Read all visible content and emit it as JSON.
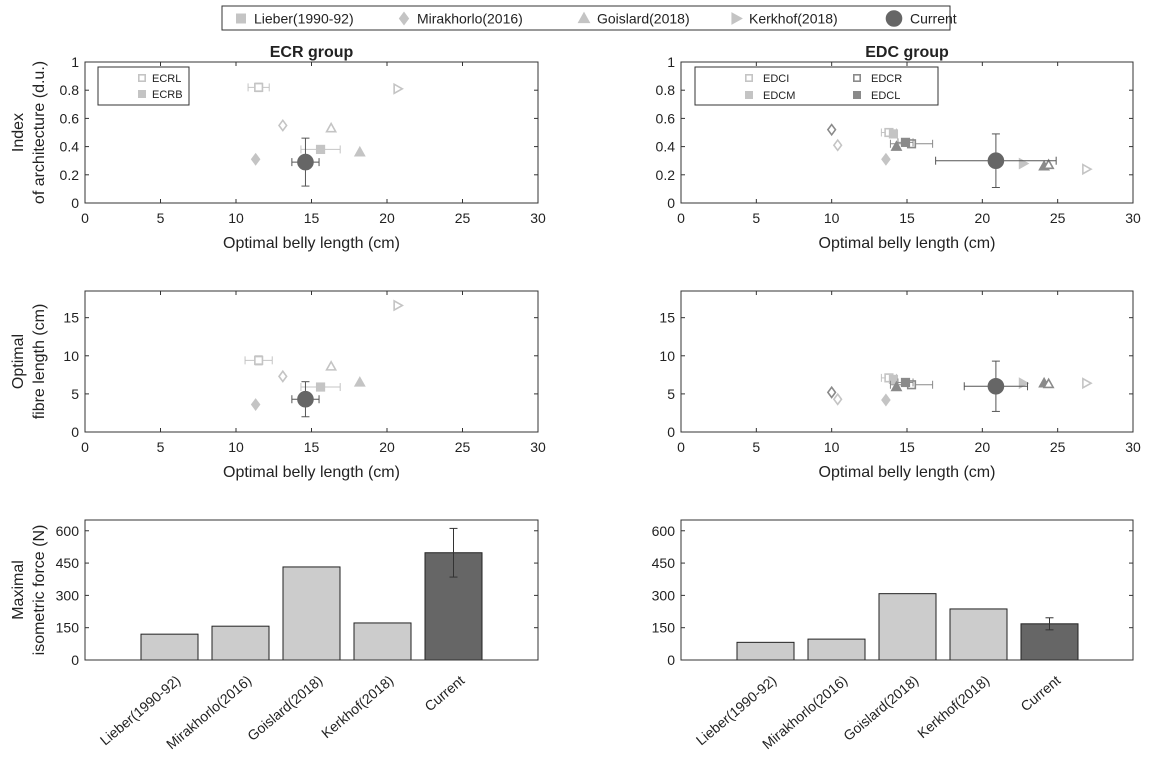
{
  "legend": {
    "placement": "top-center",
    "entries": [
      {
        "label": "Lieber(1990-92)",
        "marker": "square-filled",
        "color": "#c4c4c4"
      },
      {
        "label": "Mirakhorlo(2016)",
        "marker": "diamond-filled",
        "color": "#c4c4c4"
      },
      {
        "label": "Goislard(2018)",
        "marker": "triangle-up-filled",
        "color": "#c4c4c4"
      },
      {
        "label": "Kerkhof(2018)",
        "marker": "triangle-right-filled",
        "color": "#c4c4c4"
      },
      {
        "label": "Current",
        "marker": "circle-filled",
        "color": "#666666"
      }
    ]
  },
  "chart_data": [
    {
      "id": "ecr-ia",
      "type": "scatter",
      "title": "ECR group",
      "xlabel": "Optimal belly length (cm)",
      "ylabel": [
        "Index",
        "of architecture (d.u.)"
      ],
      "xlim": [
        0,
        30
      ],
      "ylim": [
        0,
        1
      ],
      "xticks": [
        0,
        5,
        10,
        15,
        20,
        25,
        30
      ],
      "yticks": [
        0,
        0.2,
        0.4,
        0.6,
        0.8,
        1
      ],
      "inset_legend": [
        {
          "label": "ECRL",
          "marker": "square-open",
          "color": "#c4c4c4"
        },
        {
          "label": "ECRB",
          "marker": "square-filled",
          "color": "#c4c4c4"
        }
      ],
      "points": [
        {
          "study": "Lieber(1990-92)",
          "muscle": "ECRL",
          "x": 11.5,
          "y": 0.82,
          "xerr": 0.7,
          "yerr": 0.03,
          "marker": "square",
          "fill": false,
          "color": "#c4c4c4"
        },
        {
          "study": "Lieber(1990-92)",
          "muscle": "ECRB",
          "x": 15.6,
          "y": 0.38,
          "xerr": 1.3,
          "yerr": 0.02,
          "marker": "square",
          "fill": true,
          "color": "#c4c4c4"
        },
        {
          "study": "Mirakhorlo(2016)",
          "muscle": "ECRL",
          "x": 13.1,
          "y": 0.55,
          "marker": "diamond",
          "fill": false,
          "color": "#c4c4c4"
        },
        {
          "study": "Mirakhorlo(2016)",
          "muscle": "ECRB",
          "x": 11.3,
          "y": 0.31,
          "marker": "diamond",
          "fill": true,
          "color": "#c4c4c4"
        },
        {
          "study": "Goislard(2018)",
          "muscle": "ECRL",
          "x": 16.3,
          "y": 0.53,
          "marker": "triangle-up",
          "fill": false,
          "color": "#c4c4c4"
        },
        {
          "study": "Goislard(2018)",
          "muscle": "ECRB",
          "x": 18.2,
          "y": 0.36,
          "marker": "triangle-up",
          "fill": true,
          "color": "#c4c4c4"
        },
        {
          "study": "Kerkhof(2018)",
          "muscle": "ECRL",
          "x": 20.7,
          "y": 0.81,
          "marker": "triangle-right",
          "fill": false,
          "color": "#c4c4c4"
        },
        {
          "study": "Current",
          "muscle": "ECR",
          "x": 14.6,
          "y": 0.29,
          "xerr": 0.9,
          "yerr": 0.17,
          "marker": "circle",
          "fill": true,
          "color": "#666666"
        }
      ]
    },
    {
      "id": "edc-ia",
      "type": "scatter",
      "title": "EDC group",
      "xlabel": "Optimal belly length (cm)",
      "ylabel": [],
      "xlim": [
        0,
        30
      ],
      "ylim": [
        0,
        1
      ],
      "xticks": [
        0,
        5,
        10,
        15,
        20,
        25,
        30
      ],
      "yticks": [
        0,
        0.2,
        0.4,
        0.6,
        0.8,
        1
      ],
      "inset_legend": [
        {
          "label": "EDCI",
          "marker": "square-open",
          "color": "#c4c4c4"
        },
        {
          "label": "EDCR",
          "marker": "square-open",
          "color": "#8a8a8a"
        },
        {
          "label": "EDCM",
          "marker": "square-filled",
          "color": "#c4c4c4"
        },
        {
          "label": "EDCL",
          "marker": "square-filled",
          "color": "#8a8a8a"
        }
      ],
      "points": [
        {
          "study": "Lieber(1990-92)",
          "x": 13.8,
          "y": 0.5,
          "xerr": 0.5,
          "marker": "square",
          "fill": false,
          "color": "#c4c4c4"
        },
        {
          "study": "Lieber(1990-92)",
          "x": 14.1,
          "y": 0.49,
          "marker": "square",
          "fill": true,
          "color": "#c4c4c4"
        },
        {
          "study": "Lieber(1990-92)",
          "x": 15.3,
          "y": 0.42,
          "xerr": 1.4,
          "marker": "square",
          "fill": false,
          "color": "#8a8a8a"
        },
        {
          "study": "Lieber(1990-92)",
          "x": 14.9,
          "y": 0.43,
          "xerr": 0.5,
          "marker": "square",
          "fill": true,
          "color": "#8a8a8a"
        },
        {
          "study": "Mirakhorlo(2016)",
          "x": 10.0,
          "y": 0.52,
          "marker": "diamond",
          "fill": false,
          "color": "#8a8a8a"
        },
        {
          "study": "Mirakhorlo(2016)",
          "x": 10.4,
          "y": 0.41,
          "marker": "diamond",
          "fill": false,
          "color": "#c4c4c4"
        },
        {
          "study": "Mirakhorlo(2016)",
          "x": 13.6,
          "y": 0.31,
          "marker": "diamond",
          "fill": true,
          "color": "#c4c4c4"
        },
        {
          "study": "Goislard(2018)",
          "x": 14.3,
          "y": 0.4,
          "marker": "triangle-up",
          "fill": true,
          "color": "#8a8a8a"
        },
        {
          "study": "Goislard(2018)",
          "x": 24.1,
          "y": 0.26,
          "marker": "triangle-up",
          "fill": true,
          "color": "#8a8a8a"
        },
        {
          "study": "Goislard(2018)",
          "x": 24.4,
          "y": 0.27,
          "marker": "triangle-up",
          "fill": false,
          "color": "#8a8a8a"
        },
        {
          "study": "Kerkhof(2018)",
          "x": 22.7,
          "y": 0.28,
          "marker": "triangle-right",
          "fill": true,
          "color": "#c4c4c4"
        },
        {
          "study": "Kerkhof(2018)",
          "x": 26.9,
          "y": 0.24,
          "marker": "triangle-right",
          "fill": false,
          "color": "#c4c4c4"
        },
        {
          "study": "Current",
          "x": 20.9,
          "y": 0.3,
          "xerr": 4.0,
          "yerr": 0.19,
          "marker": "circle",
          "fill": true,
          "color": "#666666"
        }
      ]
    },
    {
      "id": "ecr-fibre",
      "type": "scatter",
      "title": "",
      "xlabel": "Optimal belly length (cm)",
      "ylabel": [
        "Optimal",
        "fibre length (cm)"
      ],
      "xlim": [
        0,
        30
      ],
      "ylim": [
        0,
        18.5
      ],
      "xticks": [
        0,
        5,
        10,
        15,
        20,
        25,
        30
      ],
      "yticks": [
        0,
        5,
        10,
        15
      ],
      "points": [
        {
          "study": "Lieber(1990-92)",
          "x": 11.5,
          "y": 9.4,
          "xerr": 0.9,
          "yerr": 0.6,
          "marker": "square",
          "fill": false,
          "color": "#c4c4c4"
        },
        {
          "study": "Lieber(1990-92)",
          "x": 15.6,
          "y": 5.9,
          "xerr": 1.3,
          "marker": "square",
          "fill": true,
          "color": "#c4c4c4"
        },
        {
          "study": "Mirakhorlo(2016)",
          "x": 13.1,
          "y": 7.3,
          "marker": "diamond",
          "fill": false,
          "color": "#c4c4c4"
        },
        {
          "study": "Mirakhorlo(2016)",
          "x": 11.3,
          "y": 3.6,
          "marker": "diamond",
          "fill": true,
          "color": "#c4c4c4"
        },
        {
          "study": "Goislard(2018)",
          "x": 16.3,
          "y": 8.6,
          "marker": "triangle-up",
          "fill": false,
          "color": "#c4c4c4"
        },
        {
          "study": "Goislard(2018)",
          "x": 18.2,
          "y": 6.5,
          "marker": "triangle-up",
          "fill": true,
          "color": "#c4c4c4"
        },
        {
          "study": "Kerkhof(2018)",
          "x": 20.7,
          "y": 16.6,
          "marker": "triangle-right",
          "fill": false,
          "color": "#c4c4c4"
        },
        {
          "study": "Current",
          "x": 14.6,
          "y": 4.3,
          "xerr": 0.9,
          "yerr": 2.3,
          "marker": "circle",
          "fill": true,
          "color": "#666666"
        }
      ]
    },
    {
      "id": "edc-fibre",
      "type": "scatter",
      "title": "",
      "xlabel": "Optimal belly length (cm)",
      "ylabel": [],
      "xlim": [
        0,
        30
      ],
      "ylim": [
        0,
        18.5
      ],
      "xticks": [
        0,
        5,
        10,
        15,
        20,
        25,
        30
      ],
      "yticks": [
        0,
        5,
        10,
        15
      ],
      "points": [
        {
          "study": "Lieber(1990-92)",
          "x": 13.8,
          "y": 7.1,
          "xerr": 0.5,
          "marker": "square",
          "fill": false,
          "color": "#c4c4c4"
        },
        {
          "study": "Lieber(1990-92)",
          "x": 14.1,
          "y": 6.9,
          "marker": "square",
          "fill": true,
          "color": "#c4c4c4"
        },
        {
          "study": "Lieber(1990-92)",
          "x": 15.3,
          "y": 6.2,
          "xerr": 1.4,
          "marker": "square",
          "fill": false,
          "color": "#8a8a8a"
        },
        {
          "study": "Lieber(1990-92)",
          "x": 14.9,
          "y": 6.5,
          "xerr": 0.5,
          "marker": "square",
          "fill": true,
          "color": "#8a8a8a"
        },
        {
          "study": "Mirakhorlo(2016)",
          "x": 10.0,
          "y": 5.2,
          "marker": "diamond",
          "fill": false,
          "color": "#8a8a8a"
        },
        {
          "study": "Mirakhorlo(2016)",
          "x": 10.4,
          "y": 4.3,
          "marker": "diamond",
          "fill": false,
          "color": "#c4c4c4"
        },
        {
          "study": "Mirakhorlo(2016)",
          "x": 13.6,
          "y": 4.2,
          "marker": "diamond",
          "fill": true,
          "color": "#c4c4c4"
        },
        {
          "study": "Goislard(2018)",
          "x": 14.3,
          "y": 5.9,
          "marker": "triangle-up",
          "fill": true,
          "color": "#8a8a8a"
        },
        {
          "study": "Goislard(2018)",
          "x": 24.1,
          "y": 6.4,
          "marker": "triangle-up",
          "fill": true,
          "color": "#8a8a8a"
        },
        {
          "study": "Goislard(2018)",
          "x": 24.4,
          "y": 6.3,
          "marker": "triangle-up",
          "fill": false,
          "color": "#8a8a8a"
        },
        {
          "study": "Kerkhof(2018)",
          "x": 22.7,
          "y": 6.4,
          "marker": "triangle-right",
          "fill": true,
          "color": "#c4c4c4"
        },
        {
          "study": "Kerkhof(2018)",
          "x": 26.9,
          "y": 6.4,
          "marker": "triangle-right",
          "fill": false,
          "color": "#c4c4c4"
        },
        {
          "study": "Current",
          "x": 20.9,
          "y": 6.0,
          "xerr": 2.1,
          "yerr": 3.3,
          "marker": "circle",
          "fill": true,
          "color": "#666666"
        }
      ]
    },
    {
      "id": "ecr-force",
      "type": "bar",
      "title": "",
      "xlabel": "",
      "ylabel": [
        "Maximal",
        "isometric force (N)"
      ],
      "categories": [
        "Lieber(1990-92)",
        "Mirakhorlo(2016)",
        "Goislard(2018)",
        "Kerkhof(2018)",
        "Current"
      ],
      "values": [
        120,
        157,
        432,
        172,
        498
      ],
      "errors": [
        null,
        null,
        null,
        null,
        113
      ],
      "colors": [
        "#cccccc",
        "#cccccc",
        "#cccccc",
        "#cccccc",
        "#666666"
      ],
      "ylim": [
        0,
        650
      ],
      "yticks": [
        0,
        150,
        300,
        450,
        600
      ]
    },
    {
      "id": "edc-force",
      "type": "bar",
      "title": "",
      "xlabel": "",
      "ylabel": [],
      "categories": [
        "Lieber(1990-92)",
        "Mirakhorlo(2016)",
        "Goislard(2018)",
        "Kerkhof(2018)",
        "Current"
      ],
      "values": [
        82,
        97,
        308,
        237,
        168
      ],
      "errors": [
        null,
        null,
        null,
        null,
        28
      ],
      "colors": [
        "#cccccc",
        "#cccccc",
        "#cccccc",
        "#cccccc",
        "#666666"
      ],
      "ylim": [
        0,
        650
      ],
      "yticks": [
        0,
        150,
        300,
        450,
        600
      ]
    }
  ]
}
